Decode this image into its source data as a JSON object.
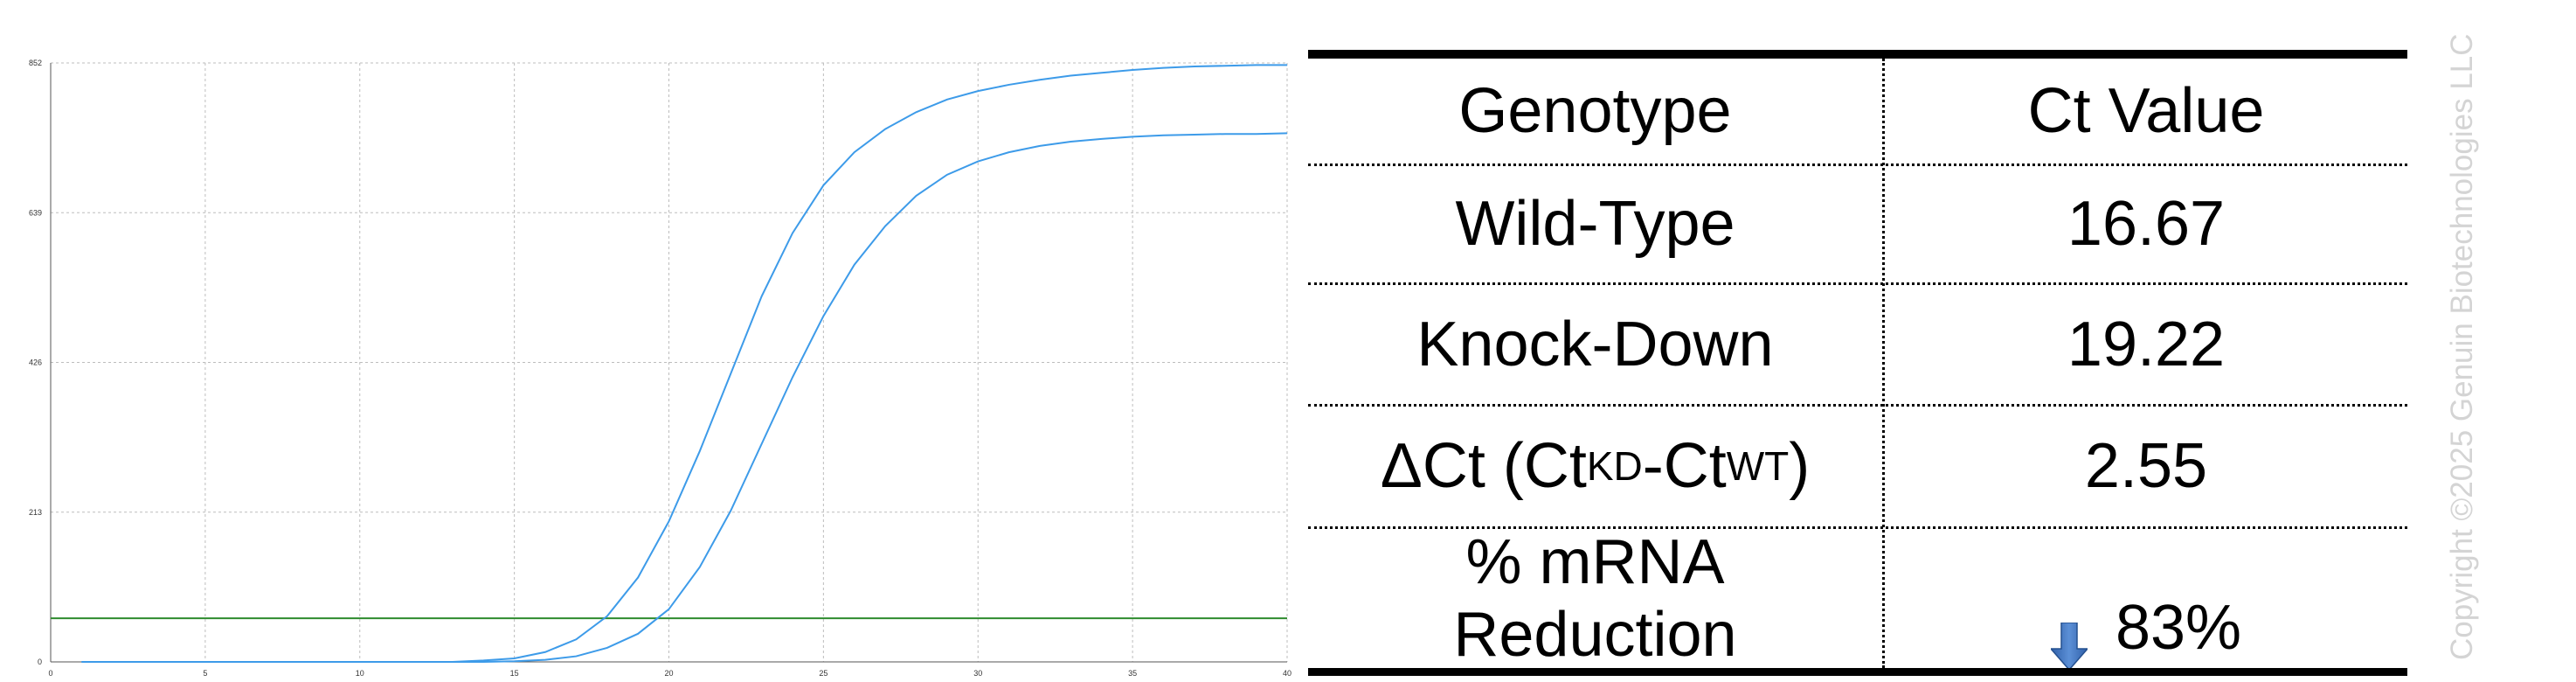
{
  "chart_data": {
    "type": "line",
    "xlim": [
      0,
      40
    ],
    "ylim": [
      0,
      852
    ],
    "x_ticks": [
      0,
      5,
      10,
      15,
      20,
      25,
      30,
      35,
      40
    ],
    "y_ticks": [
      0,
      213,
      426,
      639,
      852
    ],
    "grid": true,
    "legend": "none",
    "colors": {
      "series": "#3d9be9",
      "threshold": "#2e8b2e",
      "grid": "#bdbdbd"
    },
    "threshold": 62,
    "series": [
      {
        "x": [
          1,
          2,
          3,
          4,
          5,
          6,
          7,
          8,
          9,
          10,
          11,
          12,
          13,
          14,
          15,
          16,
          17,
          18,
          19,
          20,
          21,
          22,
          23,
          24,
          25,
          26,
          27,
          28,
          29,
          30,
          31,
          32,
          33,
          34,
          35,
          36,
          37,
          38,
          39,
          40
        ],
        "values": [
          0,
          0,
          0,
          0,
          0,
          0,
          0,
          0,
          0,
          0,
          0,
          0,
          0,
          2,
          5,
          14,
          32,
          65,
          120,
          200,
          300,
          410,
          520,
          610,
          678,
          725,
          758,
          782,
          800,
          812,
          821,
          828,
          834,
          838,
          842,
          845,
          847,
          848,
          849,
          849
        ]
      },
      {
        "x": [
          1,
          2,
          3,
          4,
          5,
          6,
          7,
          8,
          9,
          10,
          11,
          12,
          13,
          14,
          15,
          16,
          17,
          18,
          19,
          20,
          21,
          22,
          23,
          24,
          25,
          26,
          27,
          28,
          29,
          30,
          31,
          32,
          33,
          34,
          35,
          36,
          37,
          38,
          39,
          40
        ],
        "values": [
          0,
          0,
          0,
          0,
          0,
          0,
          0,
          0,
          0,
          0,
          0,
          0,
          0,
          0,
          1,
          3,
          8,
          20,
          40,
          75,
          135,
          215,
          310,
          405,
          492,
          565,
          620,
          663,
          693,
          712,
          725,
          734,
          740,
          744,
          747,
          749,
          750,
          751,
          751,
          752
        ]
      }
    ]
  },
  "table": {
    "header": {
      "col1": "Genotype",
      "col2": "Ct Value"
    },
    "rows": [
      {
        "label": "Wild-Type",
        "value": "16.67"
      },
      {
        "label": "Knock-Down",
        "value": "19.22"
      },
      {
        "label_main": "ΔCt (Ct",
        "label_sub1": "KD",
        "label_mid": "-Ct",
        "label_sub2": "WT",
        "label_end": ")",
        "value": "2.55"
      },
      {
        "label_line1": "% mRNA",
        "label_line2": "Reduction",
        "value": "83%",
        "icon": "arrow-down-icon"
      }
    ]
  },
  "copyright": "Copyright ©2025 Genuin Biotechnologies LLC"
}
